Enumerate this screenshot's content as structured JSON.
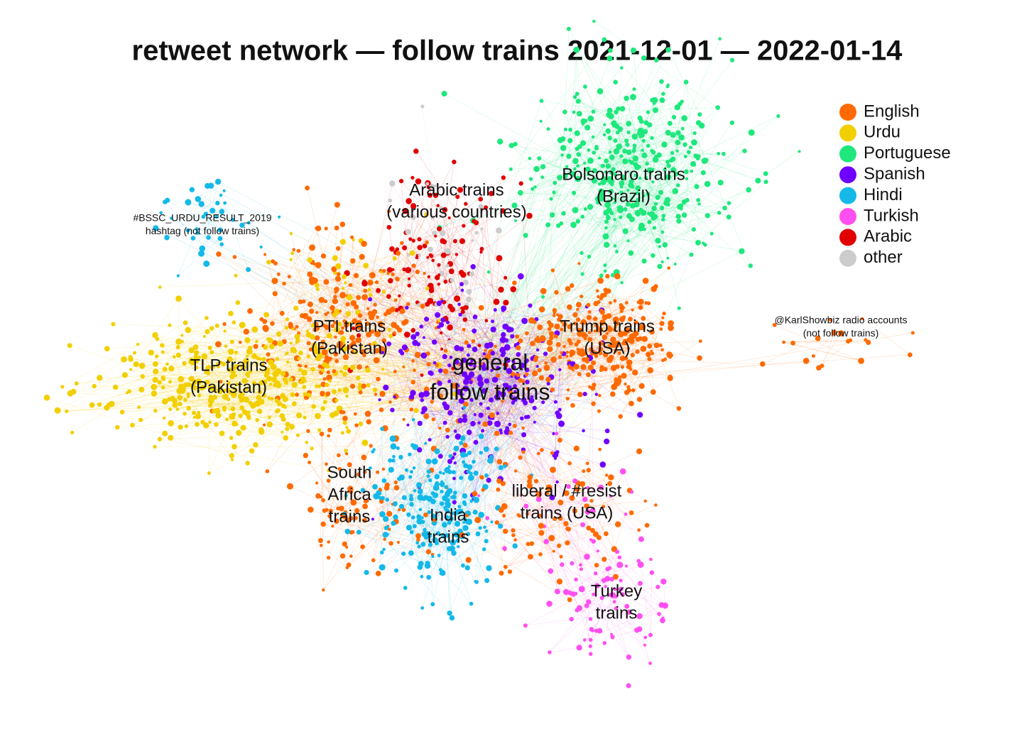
{
  "title": "retweet network — follow trains 2021-12-01 — 2022-01-14",
  "legend": [
    {
      "name": "English",
      "color": "#ff6a00"
    },
    {
      "name": "Urdu",
      "color": "#f2cf00"
    },
    {
      "name": "Portuguese",
      "color": "#1ee87c"
    },
    {
      "name": "Spanish",
      "color": "#7000ff"
    },
    {
      "name": "Hindi",
      "color": "#14b9e8"
    },
    {
      "name": "Turkish",
      "color": "#ff4ff0"
    },
    {
      "name": "Arabic",
      "color": "#e00000"
    },
    {
      "name": "other",
      "color": "#cccccc"
    }
  ],
  "labels": [
    {
      "lines": [
        "Bolsonaro trains",
        "(Brazil)"
      ]
    },
    {
      "lines": [
        "Arabic trains",
        "(various countries)"
      ]
    },
    {
      "lines": [
        "#BSSC_URDU_RESULT_2019",
        "hashtag (not follow trains)"
      ]
    },
    {
      "lines": [
        "PTI trains",
        "(Pakistan)"
      ]
    },
    {
      "lines": [
        "TLP trains",
        "(Pakistan)"
      ]
    },
    {
      "lines": [
        "general",
        "follow trains"
      ]
    },
    {
      "lines": [
        "Trump trains",
        "(USA)"
      ]
    },
    {
      "lines": [
        "@KarlShowbiz radio accounts",
        "(not follow trains)"
      ]
    },
    {
      "lines": [
        "South",
        "Africa",
        "trains"
      ]
    },
    {
      "lines": [
        "India",
        "trains"
      ]
    },
    {
      "lines": [
        "liberal / #resist",
        "trains (USA)"
      ]
    },
    {
      "lines": [
        "Turkey",
        "trains"
      ]
    }
  ]
}
